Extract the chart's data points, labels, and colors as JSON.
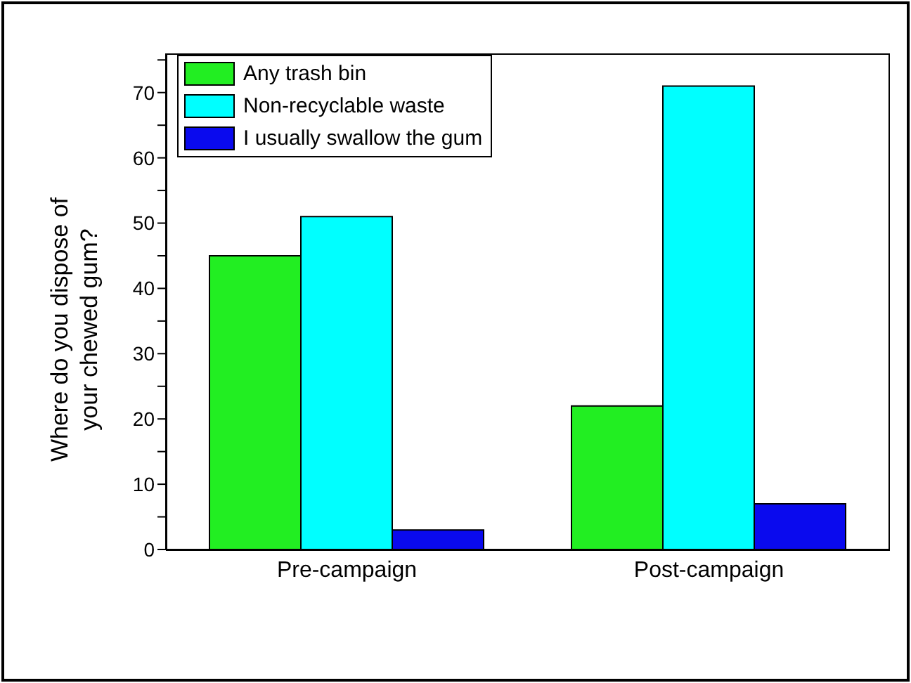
{
  "chart_data": {
    "type": "bar",
    "ylabel": "Where do you dispose of your chewed gum?",
    "categories": [
      "Pre-campaign",
      "Post-campaign"
    ],
    "series": [
      {
        "name": "Any trash bin",
        "color": "#22ee22",
        "values": [
          45,
          22
        ]
      },
      {
        "name": "Non-recyclable waste",
        "color": "#00ffff",
        "values": [
          51,
          71
        ]
      },
      {
        "name": "I usually swallow the gum",
        "color": "#0a0aee",
        "values": [
          3,
          7
        ]
      }
    ],
    "ylim": [
      0,
      76
    ],
    "yticks": [
      0,
      {
        "value": 5,
        "label": null
      },
      10,
      {
        "value": 15,
        "label": null
      },
      20,
      {
        "value": 25,
        "label": null
      },
      30,
      {
        "value": 35,
        "label": null
      },
      40,
      {
        "value": 45,
        "label": null
      },
      50,
      {
        "value": 55,
        "label": null
      },
      60,
      {
        "value": 65,
        "label": null
      },
      70,
      {
        "value": 75,
        "label": null
      }
    ],
    "grid": false,
    "legend": "top left"
  }
}
